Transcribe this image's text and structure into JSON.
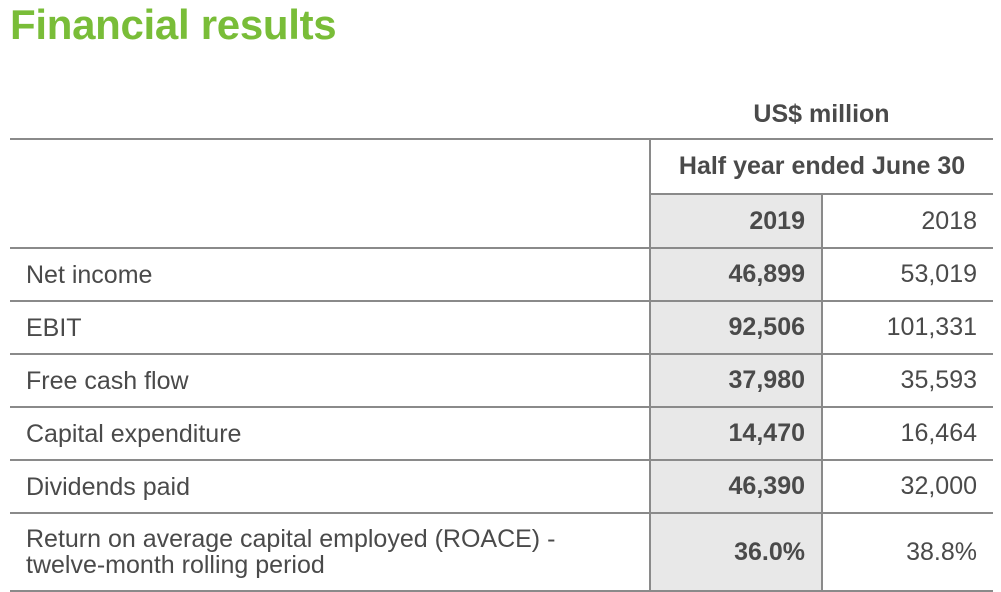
{
  "title": "Financial results",
  "unit": "US$ million",
  "header": {
    "period": "Half year ended June 30",
    "year_current": "2019",
    "year_prior": "2018"
  },
  "rows": [
    {
      "label": "Net income",
      "v2019": "46,899",
      "v2018": "53,019"
    },
    {
      "label": "EBIT",
      "v2019": "92,506",
      "v2018": "101,331"
    },
    {
      "label": "Free cash flow",
      "v2019": "37,980",
      "v2018": "35,593"
    },
    {
      "label": "Capital expenditure",
      "v2019": "14,470",
      "v2018": "16,464"
    },
    {
      "label": "Dividends paid",
      "v2019": "46,390",
      "v2018": "32,000"
    },
    {
      "label_line1": "Return on average capital employed (ROACE) -",
      "label_line2": "twelve-month rolling period",
      "v2019": "36.0%",
      "v2018": "38.8%"
    }
  ],
  "colors": {
    "title_green": "#79bd38",
    "text_gray": "#4a4a4a",
    "rule_gray": "#8a8a8a",
    "highlight_bg": "#e8e8e8"
  }
}
